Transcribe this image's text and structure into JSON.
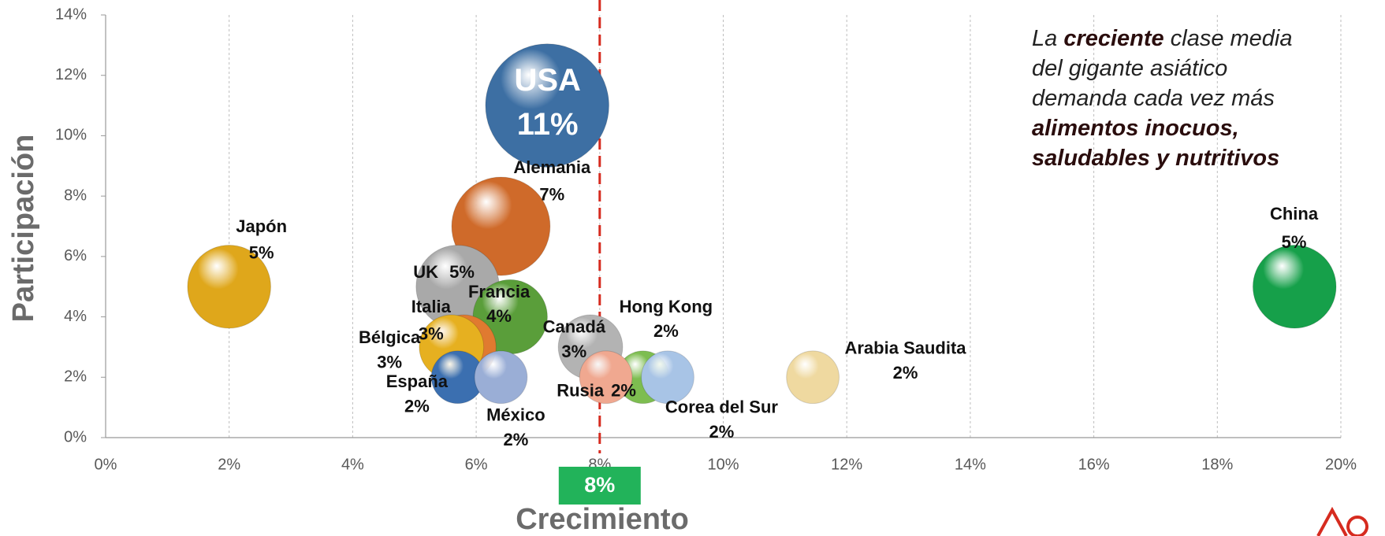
{
  "chart_data": {
    "type": "bubble",
    "xlabel": "Crecimiento",
    "ylabel": "Participación",
    "xlim": [
      0,
      20
    ],
    "ylim": [
      0,
      14
    ],
    "xticks": [
      {
        "value": 0,
        "label": "0%"
      },
      {
        "value": 2,
        "label": "2%"
      },
      {
        "value": 4,
        "label": "4%"
      },
      {
        "value": 6,
        "label": "6%"
      },
      {
        "value": 8,
        "label": "8%"
      },
      {
        "value": 10,
        "label": "10%"
      },
      {
        "value": 12,
        "label": "12%"
      },
      {
        "value": 14,
        "label": "14%"
      },
      {
        "value": 16,
        "label": "16%"
      },
      {
        "value": 18,
        "label": "18%"
      },
      {
        "value": 20,
        "label": "20%"
      }
    ],
    "yticks": [
      {
        "value": 0,
        "label": "0%"
      },
      {
        "value": 2,
        "label": "2%"
      },
      {
        "value": 4,
        "label": "4%"
      },
      {
        "value": 6,
        "label": "6%"
      },
      {
        "value": 8,
        "label": "8%"
      },
      {
        "value": 10,
        "label": "10%"
      },
      {
        "value": 12,
        "label": "12%"
      },
      {
        "value": 14,
        "label": "14%"
      }
    ],
    "grid": "x",
    "names": [
      "USA",
      "Alemania",
      "Japón",
      "China",
      "UK",
      "Francia",
      "Italia",
      "Bélgica",
      "España",
      "México",
      "Canadá",
      "Arabia Saudita",
      "Hong Kong",
      "Corea del Sur",
      "Rusia"
    ],
    "x": [
      7.15,
      6.4,
      2.0,
      19.25,
      5.7,
      6.55,
      5.8,
      5.6,
      5.7,
      6.4,
      7.85,
      11.45,
      8.7,
      9.1,
      8.1
    ],
    "values": [
      11,
      7,
      5,
      5,
      5,
      4,
      3,
      3,
      2,
      2,
      3,
      2,
      2,
      2,
      2
    ],
    "value_labels": [
      "11%",
      "7%",
      "5%",
      "5%",
      "5%",
      "4%",
      "3%",
      "3%",
      "2%",
      "2%",
      "3%",
      "2%",
      "2%",
      "2%",
      "2%"
    ],
    "colors": [
      "#3d6fa3",
      "#cf6a2a",
      "#dfa71b",
      "#16a04a",
      "#a9a9a9",
      "#5a9e3a",
      "#e07a30",
      "#e6b020",
      "#3b6fb0",
      "#9aaed6",
      "#b3b3b3",
      "#efd9a0",
      "#7dbd50",
      "#a8c4e6",
      "#f0a890"
    ],
    "reference_line": {
      "x": 8,
      "label": "8%",
      "color": "#d62b1f",
      "label_color": "#22b35a"
    },
    "annotation": [
      [
        {
          "text": "La ",
          "bold": false
        },
        {
          "text": "creciente",
          "bold": true
        },
        {
          "text": " clase media",
          "bold": false
        }
      ],
      [
        {
          "text": "del gigante asiático",
          "bold": false
        }
      ],
      [
        {
          "text": "demanda cada vez más",
          "bold": false
        }
      ],
      [
        {
          "text": "alimentos inocuos,",
          "bold": true
        }
      ],
      [
        {
          "text": "saludables y nutritivos",
          "bold": true
        }
      ]
    ]
  }
}
